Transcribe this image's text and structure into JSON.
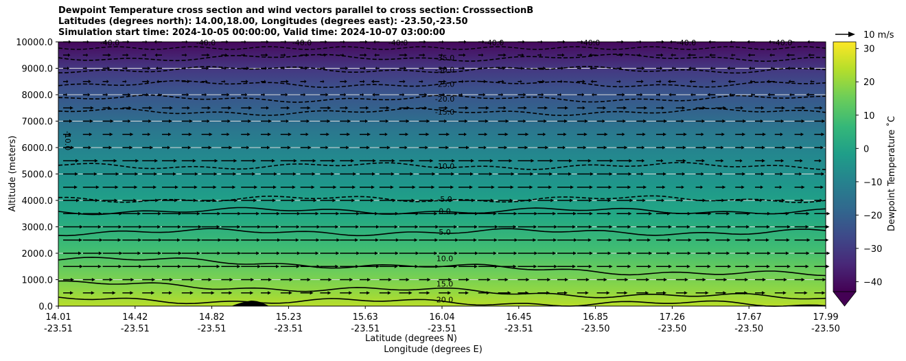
{
  "title_lines": [
    "Dewpoint Temperature cross section and wind vectors parallel to cross section: CrosssectionB",
    "Latitudes (degrees north): 14.00,18.00, Longitudes (degrees east): -23.50,-23.50",
    "Simulation start time: 2024-10-05 00:00:00, Valid time: 2024-10-07 03:00:00"
  ],
  "quiver_key_label": "10 m/s",
  "colorbar_label": "Dewpoint Temperature ˚C",
  "chart_data": {
    "type": "heatmap",
    "ylabel": "Altitude (meters)",
    "xlabel_lines": [
      "Latitude (degrees N)",
      "Longitude (degrees E)"
    ],
    "ylim": [
      0,
      10000
    ],
    "yticks": [
      "0.0",
      "1000.0",
      "2000.0",
      "3000.0",
      "4000.0",
      "5000.0",
      "6000.0",
      "7000.0",
      "8000.0",
      "9000.0",
      "10000.0"
    ],
    "xticks": [
      {
        "lat": "14.01",
        "lon": "-23.51"
      },
      {
        "lat": "14.42",
        "lon": "-23.51"
      },
      {
        "lat": "14.82",
        "lon": "-23.51"
      },
      {
        "lat": "15.23",
        "lon": "-23.51"
      },
      {
        "lat": "15.63",
        "lon": "-23.51"
      },
      {
        "lat": "16.04",
        "lon": "-23.51"
      },
      {
        "lat": "16.45",
        "lon": "-23.51"
      },
      {
        "lat": "16.85",
        "lon": "-23.50"
      },
      {
        "lat": "17.26",
        "lon": "-23.50"
      },
      {
        "lat": "17.67",
        "lon": "-23.50"
      },
      {
        "lat": "17.99",
        "lon": "-23.50"
      }
    ],
    "grid": "horizontal",
    "colorbar": {
      "range": [
        -42,
        32
      ],
      "ticks": [
        "30",
        "20",
        "10",
        "0",
        "−10",
        "−20",
        "−30",
        "−40"
      ],
      "extend": "both"
    },
    "contour_labels": [
      {
        "value": "-35.0",
        "altitude": 9400
      },
      {
        "value": "-30.0",
        "altitude": 8950
      },
      {
        "value": "-25.0",
        "altitude": 8400
      },
      {
        "value": "-20.0",
        "altitude": 7850
      },
      {
        "value": "-15.0",
        "altitude": 7350
      },
      {
        "value": "-10.0",
        "altitude": 5300
      },
      {
        "value": "-5.0",
        "altitude": 4050
      },
      {
        "value": "0.0",
        "altitude": 3600
      },
      {
        "value": "5.0",
        "altitude": 2800
      },
      {
        "value": "10.0",
        "altitude": 1800
      },
      {
        "value": "15.0",
        "altitude": 850
      },
      {
        "value": "20.0",
        "altitude": 250
      }
    ],
    "contour_labels_top": [
      "-40.0",
      "-40.0",
      "-40.0",
      "-40.0",
      "-40.0",
      "-40.0",
      "-40.0",
      "-40.0"
    ],
    "contour_label_left": "-10.0",
    "palette": [
      "#440154",
      "#482878",
      "#3e4989",
      "#31688e",
      "#26828e",
      "#1f9e89",
      "#35b779",
      "#6ece58",
      "#b5de2b",
      "#fde725"
    ]
  }
}
